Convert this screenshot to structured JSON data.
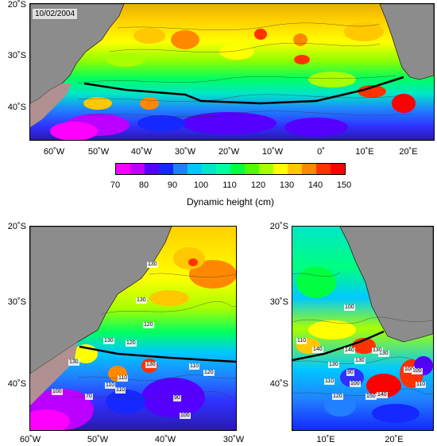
{
  "date_label": "10/02/2004",
  "colorbar": {
    "ticks": [
      "70",
      "80",
      "90",
      "100",
      "110",
      "120",
      "130",
      "140",
      "150"
    ],
    "colors": [
      "#ff00ff",
      "#bb00ff",
      "#5500ff",
      "#1428ff",
      "#2080ff",
      "#00c8ff",
      "#00e6c8",
      "#00ffa0",
      "#00ff40",
      "#4cff00",
      "#a8ff00",
      "#ffff00",
      "#ffc800",
      "#ff8800",
      "#ff3200",
      "#ff0000"
    ],
    "label": "Dynamic height (cm)"
  },
  "top_map": {
    "y_ticks": [
      "20˚S",
      "30˚S",
      "40˚S"
    ],
    "x_ticks": [
      "60˚W",
      "50˚W",
      "40˚W",
      "30˚W",
      "20˚W",
      "10˚W",
      "0˚",
      "10˚E",
      "20˚E"
    ]
  },
  "left_map": {
    "y_ticks": [
      "20˚S",
      "30˚S",
      "40˚S"
    ],
    "x_ticks": [
      "60˚W",
      "50˚W",
      "40˚W",
      "30˚W"
    ],
    "contour_labels": [
      "130",
      "130",
      "120",
      "130",
      "120",
      "110",
      "120",
      "130",
      "130",
      "110",
      "110",
      "100",
      "70",
      "110",
      "90",
      "100"
    ]
  },
  "right_map": {
    "y_ticks": [
      "20˚S",
      "30˚S",
      "40˚S"
    ],
    "x_ticks": [
      "10˚E",
      "20˚E"
    ],
    "contour_labels": [
      "100",
      "110",
      "140",
      "140",
      "130",
      "130",
      "130",
      "90",
      "100",
      "110",
      "100",
      "120",
      "150",
      "140",
      "100",
      "110",
      "130"
    ]
  },
  "colors": {
    "land": "#8c8c8c",
    "front_line": "#000000",
    "contour": "#333333"
  }
}
